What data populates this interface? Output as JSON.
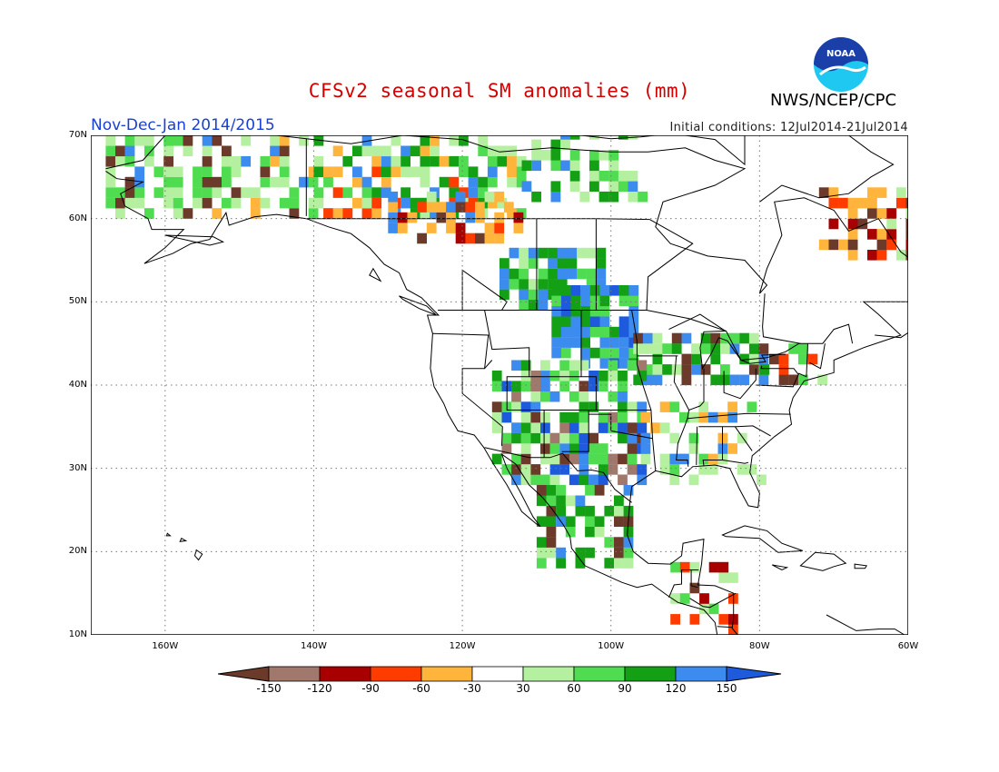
{
  "header": {
    "title": "CFSv2 seasonal SM anomalies (mm)",
    "period": "Nov-Dec-Jan 2014/2015",
    "initial_conditions": "Initial conditions: 12Jul2014-21Jul2014",
    "agency": "NWS/NCEP/CPC",
    "logo_text": "NOAA"
  },
  "map": {
    "lat_labels": [
      "70N",
      "60N",
      "50N",
      "40N",
      "30N",
      "20N",
      "10N"
    ],
    "lon_labels": [
      "160W",
      "140W",
      "120W",
      "100W",
      "80W",
      "60W"
    ],
    "lat_range": [
      10,
      70
    ],
    "lon_range": [
      -170,
      -60
    ],
    "grid_lines": "dotted"
  },
  "colorbar": {
    "labels": [
      "-150",
      "-120",
      "-90",
      "-60",
      "-30",
      "30",
      "60",
      "90",
      "120",
      "150"
    ],
    "colors": [
      "#6b3a2a",
      "#a0786c",
      "#a80000",
      "#ff3c00",
      "#ffb43c",
      "#ffffff",
      "#b4f0a0",
      "#50dc50",
      "#14a014",
      "#3c8cf0",
      "#1e5adc"
    ]
  },
  "colors": {
    "land_outline": "#000000",
    "title": "#d40000",
    "period": "#1a3fd6",
    "logo_blue": "#1b3fa8",
    "logo_cyan": "#1ec8f0"
  }
}
